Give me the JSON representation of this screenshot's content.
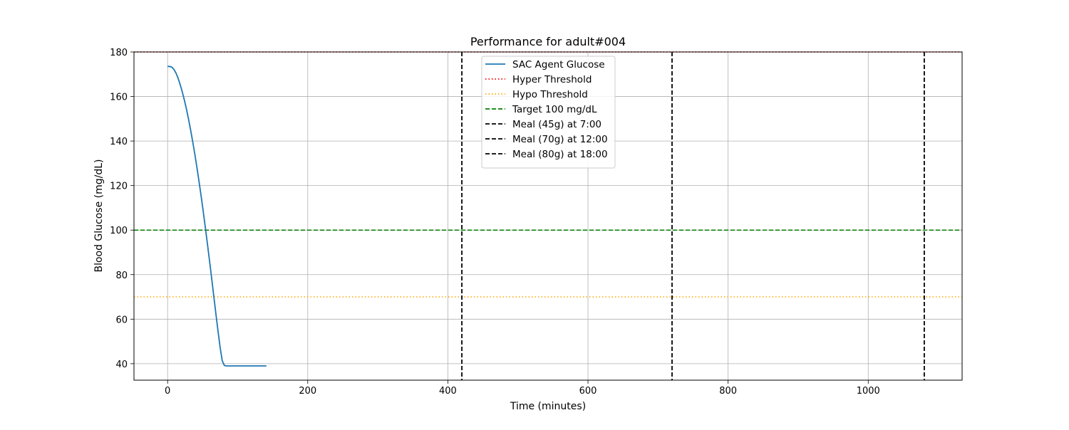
{
  "chart_data": {
    "type": "line",
    "title": "Performance for adult#004",
    "xlabel": "Time (minutes)",
    "ylabel": "Blood Glucose (mg/dL)",
    "xlim": [
      -48,
      1134
    ],
    "ylim": [
      32.6,
      180
    ],
    "xticks": [
      0,
      200,
      400,
      600,
      800,
      1000
    ],
    "yticks": [
      40,
      60,
      80,
      100,
      120,
      140,
      160,
      180
    ],
    "grid": true,
    "legend_position": "top-center",
    "series": [
      {
        "name": "SAC Agent Glucose",
        "color": "#1f77b4",
        "style": "solid",
        "x": [
          0,
          3,
          6,
          9,
          12,
          15,
          18,
          21,
          24,
          27,
          30,
          33,
          36,
          39,
          42,
          45,
          48,
          51,
          54,
          57,
          60,
          63,
          66,
          69,
          72,
          75,
          78,
          81,
          84,
          87,
          90,
          93,
          96,
          99,
          102,
          105,
          108,
          111,
          114,
          117,
          120,
          123,
          126,
          129,
          132,
          135,
          138,
          141
        ],
        "y": [
          173.5,
          173.5,
          173.2,
          172.2,
          170.5,
          168.2,
          165.3,
          162,
          158.3,
          154.2,
          149.6,
          144.7,
          139.4,
          133.8,
          127.8,
          121.5,
          114.9,
          108,
          100.8,
          93.4,
          85.8,
          78,
          70.1,
          62.2,
          54.5,
          47.2,
          41.3,
          39.2,
          39,
          39,
          39,
          39,
          39,
          39,
          39,
          39,
          39,
          39,
          39,
          39,
          39,
          39,
          39,
          39,
          39,
          39,
          39,
          39
        ]
      }
    ],
    "hlines": [
      {
        "name": "Hyper Threshold",
        "y": 180,
        "color": "#ff0000",
        "style": "dotted"
      },
      {
        "name": "Hypo Threshold",
        "y": 70,
        "color": "#ffa500",
        "style": "dotted"
      },
      {
        "name": "Target 100 mg/dL",
        "y": 100,
        "color": "#008000",
        "style": "dashed"
      }
    ],
    "vlines": [
      {
        "name": "Meal (45g) at 7:00",
        "x": 420,
        "color": "#000000",
        "style": "dashed"
      },
      {
        "name": "Meal (70g) at 12:00",
        "x": 720,
        "color": "#000000",
        "style": "dashed"
      },
      {
        "name": "Meal (80g) at 18:00",
        "x": 1080,
        "color": "#000000",
        "style": "dashed"
      }
    ],
    "legend": [
      {
        "label": "SAC Agent Glucose",
        "color": "#1f77b4",
        "style": "solid"
      },
      {
        "label": "Hyper Threshold",
        "color": "#ff0000",
        "style": "dotted"
      },
      {
        "label": "Hypo Threshold",
        "color": "#ffa500",
        "style": "dotted"
      },
      {
        "label": "Target 100 mg/dL",
        "color": "#008000",
        "style": "dashed"
      },
      {
        "label": "Meal (45g) at 7:00",
        "color": "#000000",
        "style": "dashed"
      },
      {
        "label": "Meal (70g) at 12:00",
        "color": "#000000",
        "style": "dashed"
      },
      {
        "label": "Meal (80g) at 18:00",
        "color": "#000000",
        "style": "dashed"
      }
    ]
  }
}
